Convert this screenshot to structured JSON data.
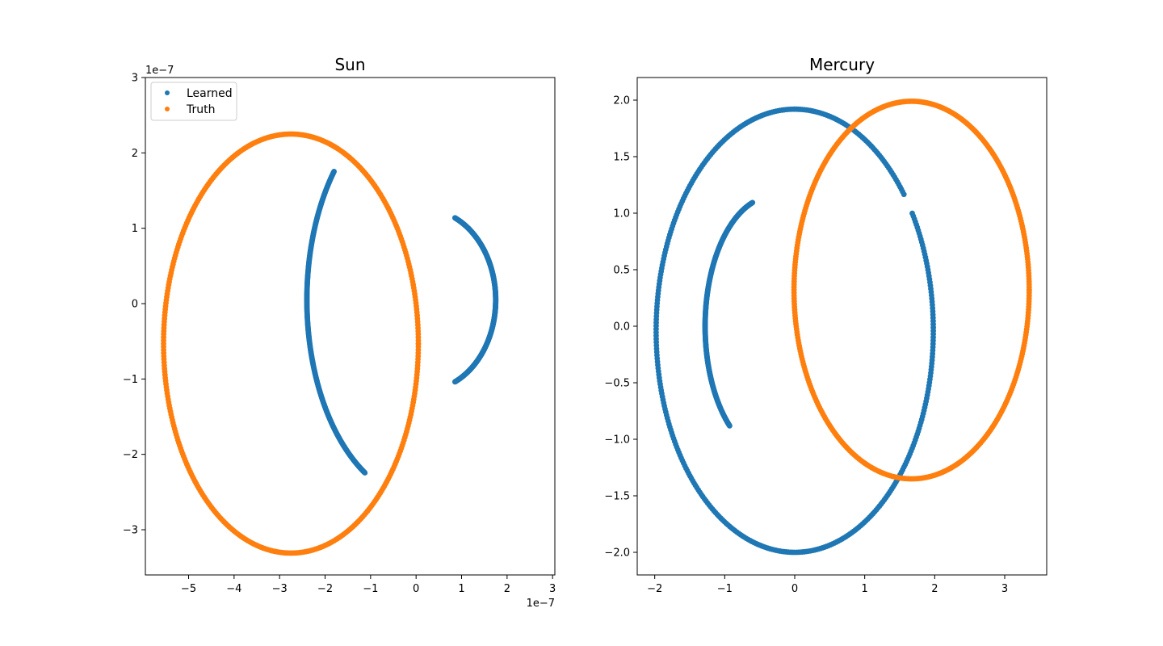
{
  "colors": {
    "learned": "#1f77b4",
    "truth": "#ff7f0e"
  },
  "chart_data": [
    {
      "type": "scatter",
      "title": "Sun",
      "xlabel": "",
      "ylabel": "",
      "x_offset_label": "1e−7",
      "y_offset_label": "1e−7",
      "xlim": [
        -5.95,
        3.05
      ],
      "ylim": [
        -3.6,
        3.0
      ],
      "xticks": [
        -5,
        -4,
        -3,
        -2,
        -1,
        0,
        1,
        2,
        3
      ],
      "xtick_labels": [
        "−5",
        "−4",
        "−3",
        "−2",
        "−1",
        "0",
        "1",
        "2",
        "3"
      ],
      "yticks": [
        -3,
        -2,
        -1,
        0,
        1,
        2,
        3
      ],
      "ytick_labels": [
        "−3",
        "−2",
        "−1",
        "0",
        "1",
        "2",
        "3"
      ],
      "legend": {
        "position": "top-left",
        "entries": [
          "Learned",
          "Truth"
        ]
      },
      "series": [
        {
          "name": "Learned",
          "segments": [
            {
              "cx": 0.15,
              "cy": 0.05,
              "rx": 2.55,
              "ry": 2.65,
              "t_start_deg": 140,
              "t_end_deg": 240,
              "direction": "cw"
            },
            {
              "cx": 0.2,
              "cy": 0.05,
              "rx": 1.55,
              "ry": 1.2,
              "t_start_deg": 65,
              "t_end_deg": -65,
              "direction": "cw"
            }
          ]
        },
        {
          "name": "Truth",
          "segments": [
            {
              "cx": -2.75,
              "cy": -0.53,
              "rx": 2.8,
              "ry": 2.78,
              "t_start_deg": 0,
              "t_end_deg": 360,
              "direction": "ccw"
            }
          ]
        }
      ]
    },
    {
      "type": "scatter",
      "title": "Mercury",
      "xlabel": "",
      "ylabel": "",
      "xlim": [
        -2.25,
        3.6
      ],
      "ylim": [
        -2.2,
        2.2
      ],
      "xticks": [
        -2,
        -1,
        0,
        1,
        2,
        3
      ],
      "xtick_labels": [
        "−2",
        "−1",
        "0",
        "1",
        "2",
        "3"
      ],
      "yticks": [
        -2.0,
        -1.5,
        -1.0,
        -0.5,
        0.0,
        0.5,
        1.0,
        1.5,
        2.0
      ],
      "ytick_labels": [
        "−2.0",
        "−1.5",
        "−1.0",
        "−0.5",
        "0.0",
        "0.5",
        "1.0",
        "1.5",
        "2.0"
      ],
      "series": [
        {
          "name": "Learned",
          "segments": [
            {
              "cx": 0.0,
              "cy": -0.04,
              "rx": 1.98,
              "ry": 1.96,
              "t_start_deg": 38,
              "t_end_deg": 392,
              "direction": "ccw"
            },
            {
              "cx": -0.3,
              "cy": 0.0,
              "rx": 0.98,
              "ry": 1.15,
              "t_start_deg": 108,
              "t_end_deg": 230,
              "direction": "ccw"
            }
          ]
        },
        {
          "name": "Truth",
          "segments": [
            {
              "cx": 1.67,
              "cy": 0.32,
              "rx": 1.68,
              "ry": 1.67,
              "t_start_deg": 0,
              "t_end_deg": 360,
              "direction": "ccw"
            }
          ]
        }
      ]
    }
  ]
}
